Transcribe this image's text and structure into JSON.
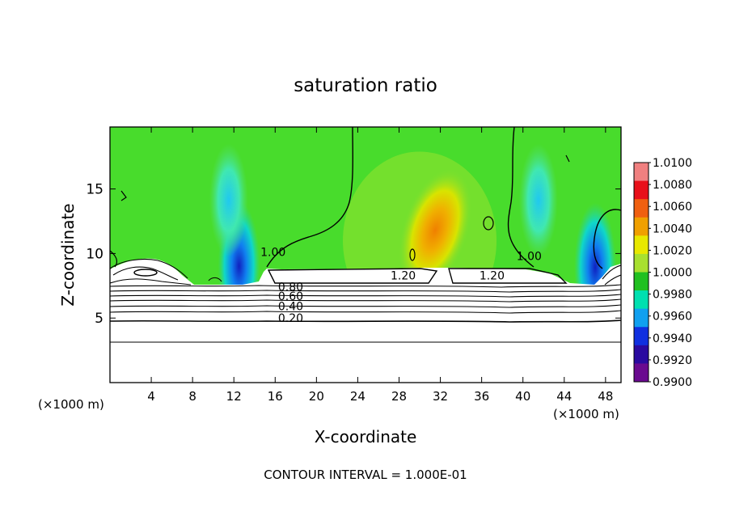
{
  "chart_data": {
    "type": "heatmap",
    "title": "saturation ratio",
    "xlabel": "X-coordinate",
    "ylabel": "Z-coordinate",
    "x_unit_left": "(×1000 m)",
    "x_unit_right": "(×1000 m)",
    "xlim": [
      0,
      49.5
    ],
    "ylim": [
      0,
      19.8
    ],
    "x_ticks": [
      4,
      8,
      12,
      16,
      20,
      24,
      28,
      32,
      36,
      40,
      44,
      48
    ],
    "y_ticks": [
      5,
      10,
      15
    ],
    "footer": "CONTOUR INTERVAL = 1.000E-01",
    "colorbar": {
      "levels": [
        "1.0100",
        "1.0080",
        "1.0060",
        "1.0040",
        "1.0020",
        "1.0000",
        "0.9980",
        "0.9960",
        "0.9940",
        "0.9920",
        "0.9900"
      ],
      "colors": [
        "#f08080",
        "#e8101a",
        "#f06010",
        "#f0a000",
        "#e8e800",
        "#a8e030",
        "#20c020",
        "#00e0b0",
        "#10a0f0",
        "#1030e0",
        "#2a0aa0",
        "#6a0a90"
      ]
    },
    "contour_labels": [
      {
        "text": "1.00",
        "x": 15.8,
        "y": 9.8
      },
      {
        "text": "1.00",
        "x": 40.6,
        "y": 9.5
      },
      {
        "text": "1.20",
        "x": 28.4,
        "y": 8.0
      },
      {
        "text": "1.20",
        "x": 37.0,
        "y": 8.0
      },
      {
        "text": "0.80",
        "x": 17.5,
        "y": 7.1
      },
      {
        "text": "0.60",
        "x": 17.5,
        "y": 6.4
      },
      {
        "text": "0.40",
        "x": 17.5,
        "y": 5.6
      },
      {
        "text": "0.20",
        "x": 17.5,
        "y": 4.7
      }
    ],
    "field_features": [
      {
        "type": "max",
        "value": 1.0045,
        "x": 31.5,
        "y": 11.8
      },
      {
        "type": "min",
        "value": 0.992,
        "x": 12.5,
        "y": 8.4
      },
      {
        "type": "min",
        "value": 0.9935,
        "x": 47.0,
        "y": 8.3
      },
      {
        "type": "min",
        "value": 0.9965,
        "x": 11.5,
        "y": 13.5
      },
      {
        "type": "min",
        "value": 0.9975,
        "x": 41.5,
        "y": 13.5
      }
    ],
    "cloud_top": 8.9,
    "unsaturated_base": 7.5
  }
}
